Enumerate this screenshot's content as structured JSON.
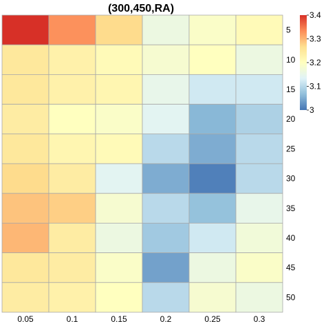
{
  "chart_data": {
    "type": "heatmap",
    "title": "(300,450,RA)",
    "x_categories": [
      "0.05",
      "0.1",
      "0.15",
      "0.2",
      "0.25",
      "0.3"
    ],
    "y_categories": [
      "5",
      "10",
      "15",
      "20",
      "25",
      "30",
      "35",
      "40",
      "45",
      "50"
    ],
    "values": [
      [
        3.4,
        3.33,
        3.27,
        3.16,
        3.19,
        3.21
      ],
      [
        3.25,
        3.23,
        3.21,
        3.18,
        3.2,
        3.16
      ],
      [
        3.25,
        3.23,
        3.22,
        3.15,
        3.12,
        3.12
      ],
      [
        3.24,
        3.2,
        3.19,
        3.14,
        3.06,
        3.09
      ],
      [
        3.25,
        3.22,
        3.21,
        3.1,
        3.05,
        3.1
      ],
      [
        3.27,
        3.24,
        3.14,
        3.05,
        3.01,
        3.1
      ],
      [
        3.29,
        3.28,
        3.18,
        3.1,
        3.07,
        3.15
      ],
      [
        3.3,
        3.24,
        3.16,
        3.08,
        3.12,
        3.17
      ],
      [
        3.25,
        3.24,
        3.19,
        3.04,
        3.16,
        3.19
      ],
      [
        3.24,
        3.23,
        3.2,
        3.1,
        3.18,
        3.16
      ]
    ],
    "colorbar": {
      "min": 3.0,
      "max": 3.4,
      "ticks": [
        "3",
        "3.1",
        "3.2",
        "3.3",
        "3.4"
      ],
      "tick_values": [
        3.0,
        3.1,
        3.2,
        3.3,
        3.4
      ],
      "colors": [
        "#4575b4",
        "#91bfdb",
        "#e0f3f8",
        "#ffffbf",
        "#fee090",
        "#fc8d59",
        "#d73027"
      ]
    },
    "grid": true,
    "legend_position": "right"
  }
}
